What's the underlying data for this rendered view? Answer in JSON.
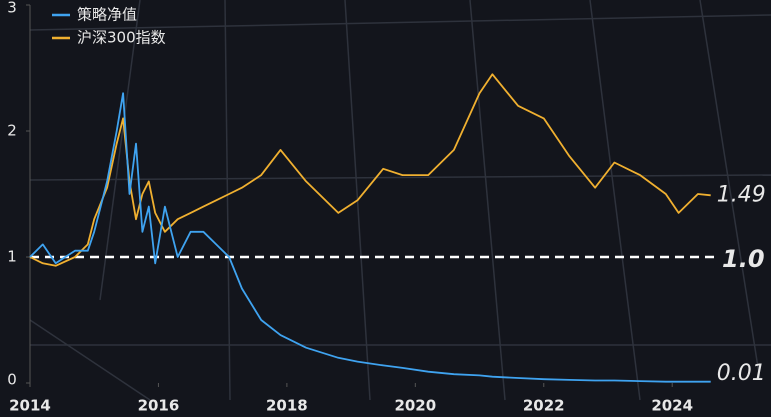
{
  "chart_data": {
    "type": "line",
    "x": [
      2014.0,
      2014.2,
      2014.4,
      2014.7,
      2014.9,
      2015.0,
      2015.2,
      2015.35,
      2015.45,
      2015.55,
      2015.65,
      2015.75,
      2015.85,
      2015.95,
      2016.1,
      2016.3,
      2016.5,
      2016.7,
      2016.9,
      2017.1,
      2017.3,
      2017.6,
      2017.9,
      2018.3,
      2018.8,
      2019.1,
      2019.5,
      2019.8,
      2020.2,
      2020.6,
      2021.0,
      2021.2,
      2021.6,
      2022.0,
      2022.4,
      2022.8,
      2023.1,
      2023.5,
      2023.9,
      2024.1,
      2024.4,
      2024.6
    ],
    "series": [
      {
        "name": "策略净值",
        "color": "#3fa3f0",
        "end_label": "0.01",
        "values": [
          1.0,
          1.1,
          0.95,
          1.05,
          1.05,
          1.2,
          1.6,
          2.0,
          2.3,
          1.5,
          1.9,
          1.2,
          1.4,
          0.95,
          1.4,
          1.0,
          1.2,
          1.2,
          1.1,
          1.0,
          0.75,
          0.5,
          0.38,
          0.28,
          0.2,
          0.17,
          0.14,
          0.12,
          0.09,
          0.07,
          0.06,
          0.05,
          0.04,
          0.03,
          0.025,
          0.02,
          0.02,
          0.015,
          0.01,
          0.01,
          0.01,
          0.01
        ]
      },
      {
        "name": "沪深300指数",
        "color": "#f0b030",
        "end_label": "1.49",
        "values": [
          1.0,
          0.95,
          0.93,
          1.0,
          1.1,
          1.3,
          1.55,
          1.9,
          2.1,
          1.6,
          1.3,
          1.5,
          1.6,
          1.35,
          1.2,
          1.3,
          1.35,
          1.4,
          1.45,
          1.5,
          1.55,
          1.65,
          1.85,
          1.6,
          1.35,
          1.45,
          1.7,
          1.65,
          1.65,
          1.85,
          2.3,
          2.45,
          2.2,
          2.1,
          1.8,
          1.55,
          1.75,
          1.65,
          1.5,
          1.35,
          1.5,
          1.49
        ]
      }
    ],
    "reference_line": {
      "value": 1,
      "label": "1.0"
    },
    "xlim": [
      2014,
      2024.9
    ],
    "xticks": [
      2014,
      2016,
      2018,
      2020,
      2022,
      2024
    ],
    "ylim": [
      0,
      3
    ],
    "yticks": [
      0,
      1,
      2,
      3
    ]
  }
}
